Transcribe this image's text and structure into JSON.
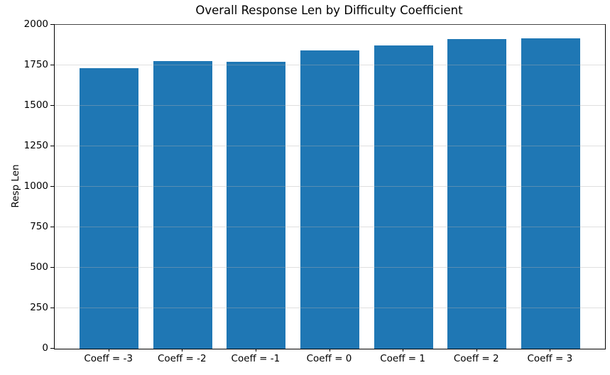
{
  "chart_data": {
    "type": "bar",
    "title": "Overall Response Len by Difficulty Coefficient",
    "xlabel": "",
    "ylabel": "Resp Len",
    "categories": [
      "Coeff = -3",
      "Coeff = -2",
      "Coeff = -1",
      "Coeff = 0",
      "Coeff = 1",
      "Coeff = 2",
      "Coeff = 3"
    ],
    "values": [
      1733,
      1776,
      1774,
      1843,
      1872,
      1911,
      1916
    ],
    "ylim": [
      0,
      2000
    ],
    "yticks": [
      0,
      250,
      500,
      750,
      1000,
      1250,
      1500,
      1750,
      2000
    ],
    "bar_color": "#1f77b4",
    "grid": "horizontal-light-gray-over-bars",
    "legend_position": "none"
  }
}
